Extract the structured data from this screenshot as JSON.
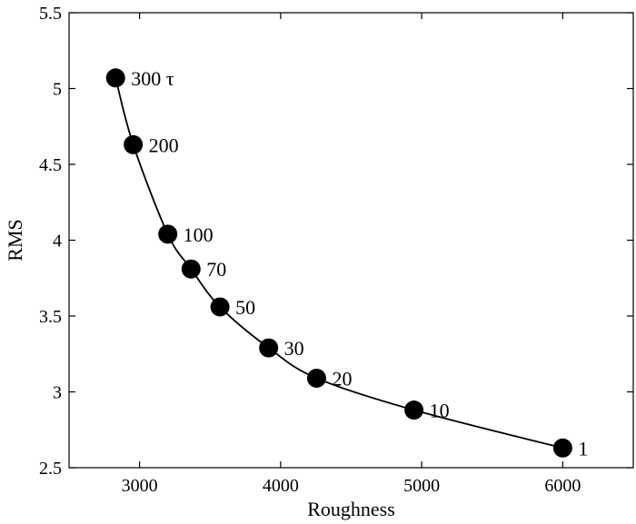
{
  "chart_data": {
    "type": "line",
    "title": "",
    "xlabel": "Roughness",
    "ylabel": "RMS",
    "xlim": [
      2500,
      6500
    ],
    "ylim": [
      2.5,
      5.5
    ],
    "xticks": [
      3000,
      4000,
      5000,
      6000
    ],
    "xtick_labels": [
      "3000",
      "4000",
      "5000",
      "6000"
    ],
    "yticks": [
      2.5,
      3,
      3.5,
      4,
      4.5,
      5,
      5.5
    ],
    "ytick_labels": [
      "2.5",
      "3",
      "3.5",
      "4",
      "4.5",
      "5",
      "5.5"
    ],
    "grid": false,
    "legend": false,
    "series": [
      {
        "x": [
          2830,
          2955,
          3200,
          3365,
          3570,
          3915,
          4255,
          4945,
          6000
        ],
        "y": [
          5.07,
          4.63,
          4.04,
          3.81,
          3.56,
          3.29,
          3.09,
          2.88,
          2.63
        ],
        "point_labels": [
          "300 τ",
          "200",
          "100",
          "70",
          "50",
          "30",
          "20",
          "10",
          "1"
        ],
        "color": "#000000",
        "marker": "filled-circle"
      }
    ]
  }
}
